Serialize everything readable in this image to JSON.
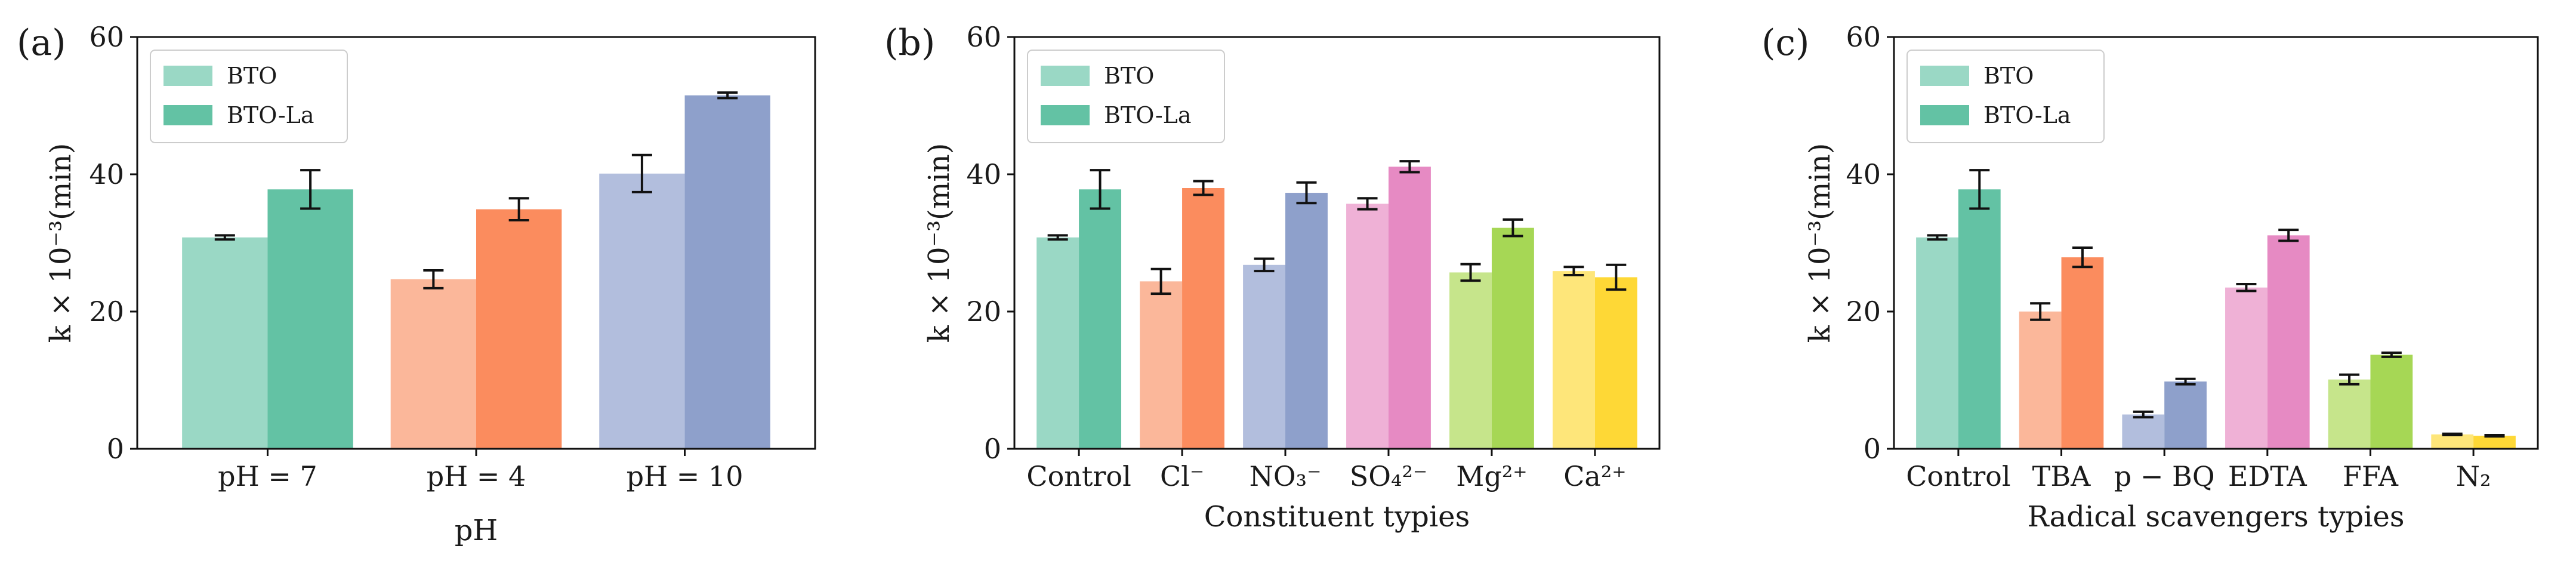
{
  "chart_data": [
    {
      "type": "bar",
      "panel_label": "(a)",
      "categories": [
        "pH = 7",
        "pH = 4",
        "pH = 10"
      ],
      "xlabel": "pH",
      "ylabel": "k × 10⁻³(min)",
      "ylim": [
        0,
        60
      ],
      "yticks": [
        0,
        20,
        40,
        60
      ],
      "legend_position": "top-left",
      "series": [
        {
          "name": "BTO",
          "values": [
            30.8,
            24.7,
            40.1
          ],
          "errors": [
            0.3,
            1.3,
            2.7
          ]
        },
        {
          "name": "BTO-La",
          "values": [
            37.8,
            34.9,
            51.5
          ],
          "errors": [
            2.8,
            1.6,
            0.4
          ]
        }
      ],
      "colors": [
        [
          "#9ad8c5",
          "#63c2a4"
        ],
        [
          "#fbb79a",
          "#fb8c5e"
        ],
        [
          "#b2bedd",
          "#8ea0cb"
        ]
      ]
    },
    {
      "type": "bar",
      "panel_label": "(b)",
      "categories": [
        "Control",
        "Cl⁻",
        "NO₃⁻",
        "SO₄²⁻",
        "Mg²⁺",
        "Ca²⁺"
      ],
      "xlabel": "Constituent typies",
      "ylabel": "k × 10⁻³(min)",
      "ylim": [
        0,
        60
      ],
      "yticks": [
        0,
        20,
        40,
        60
      ],
      "legend_position": "top-left",
      "series": [
        {
          "name": "BTO",
          "values": [
            30.8,
            24.4,
            26.8,
            35.7,
            25.7,
            25.9
          ],
          "errors": [
            0.3,
            1.8,
            0.9,
            0.8,
            1.2,
            0.6
          ]
        },
        {
          "name": "BTO-La",
          "values": [
            37.8,
            38.0,
            37.3,
            41.1,
            32.2,
            25.0
          ],
          "errors": [
            2.8,
            1.0,
            1.5,
            0.8,
            1.2,
            1.8
          ]
        }
      ],
      "colors": [
        [
          "#9ad8c5",
          "#63c2a4"
        ],
        [
          "#fbb79a",
          "#fb8c5e"
        ],
        [
          "#b2bedd",
          "#8ea0cb"
        ],
        [
          "#efb1d6",
          "#e68ac3"
        ],
        [
          "#c6e58b",
          "#a6d755"
        ],
        [
          "#fee67a",
          "#fed836"
        ]
      ]
    },
    {
      "type": "bar",
      "panel_label": "(c)",
      "categories": [
        "Control",
        "TBA",
        "p − BQ",
        "EDTA",
        "FFA",
        "N₂"
      ],
      "xlabel": "Radical scavengers typies",
      "ylabel": "k × 10⁻³(min)",
      "ylim": [
        0,
        60
      ],
      "yticks": [
        0,
        20,
        40,
        60
      ],
      "legend_position": "top-left",
      "series": [
        {
          "name": "BTO",
          "values": [
            30.8,
            20.0,
            5.0,
            23.5,
            10.1,
            2.1
          ],
          "errors": [
            0.3,
            1.2,
            0.4,
            0.5,
            0.7,
            0.1
          ]
        },
        {
          "name": "BTO-La",
          "values": [
            37.8,
            27.9,
            9.8,
            31.1,
            13.7,
            1.9
          ],
          "errors": [
            2.8,
            1.4,
            0.4,
            0.8,
            0.3,
            0.1
          ]
        }
      ],
      "colors": [
        [
          "#9ad8c5",
          "#63c2a4"
        ],
        [
          "#fbb79a",
          "#fb8c5e"
        ],
        [
          "#b2bedd",
          "#8ea0cb"
        ],
        [
          "#efb1d6",
          "#e68ac3"
        ],
        [
          "#c6e58b",
          "#a6d755"
        ],
        [
          "#fee67a",
          "#fed836"
        ]
      ]
    }
  ]
}
